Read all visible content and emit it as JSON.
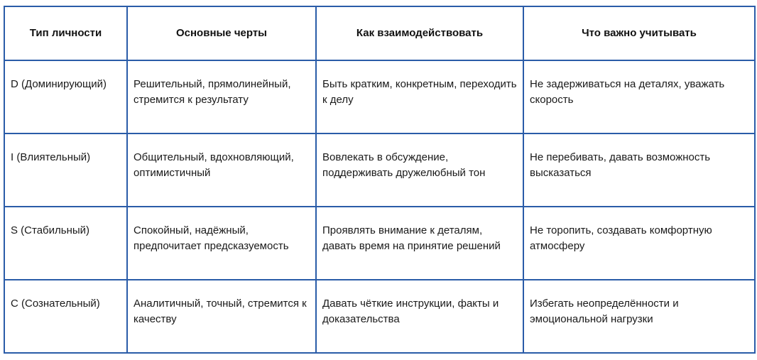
{
  "table": {
    "headers": [
      "Тип личности",
      "Основные черты",
      "Как взаимодействовать",
      "Что важно учитывать"
    ],
    "rows": [
      [
        "D (Доминирующий)",
        "Решительный, прямолинейный, стремится к результату",
        "Быть кратким, конкретным, переходить к делу",
        "Не задерживаться на деталях, уважать скорость"
      ],
      [
        "I (Влиятельный)",
        "Общительный, вдохновляющий, оптимистичный",
        "Вовлекать в обсуждение, поддерживать дружелюбный тон",
        "Не перебивать, давать возможность высказаться"
      ],
      [
        "S (Стабильный)",
        "Спокойный, надёжный, предпочитает предсказуемость",
        "Проявлять внимание к деталям, давать время на принятие решений",
        "Не торопить, создавать комфортную атмосферу"
      ],
      [
        "C (Сознательный)",
        "Аналитичный, точный, стремится к качеству",
        "Давать чёткие инструкции, факты и доказательства",
        "Избегать неопределённости и эмоциональной нагрузки"
      ]
    ]
  },
  "colors": {
    "border": "#2a5ca8"
  }
}
